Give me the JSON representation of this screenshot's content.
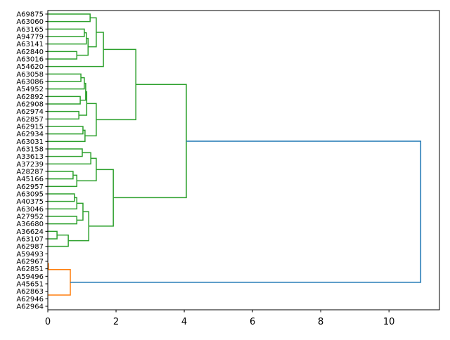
{
  "chart_data": {
    "type": "dendrogram",
    "orientation": "right",
    "title": "",
    "xlabel": "",
    "ylabel": "",
    "xlim": [
      0,
      11.48
    ],
    "xticks": [
      0,
      2,
      4,
      6,
      8,
      10
    ],
    "xtick_labels": [
      "0",
      "2",
      "4",
      "6",
      "8",
      "10"
    ],
    "leaves": [
      "A69875",
      "A63060",
      "A63165",
      "A94779",
      "A63141",
      "A62840",
      "A63016",
      "A54620",
      "A63058",
      "A63086",
      "A54952",
      "A62892",
      "A62908",
      "A62974",
      "A62857",
      "A62915",
      "A62934",
      "A63031",
      "A63158",
      "A33613",
      "A37239",
      "A28287",
      "A45166",
      "A62957",
      "A63095",
      "A40375",
      "A63046",
      "A27952",
      "A36680",
      "A36624",
      "A63107",
      "A62987",
      "A59493",
      "A62967",
      "A62851",
      "A59496",
      "A45651",
      "A62863",
      "A62946",
      "A62964"
    ],
    "colors": {
      "green": "#2ca02c",
      "orange": "#ff7f0e",
      "blue": "#1f77b4"
    },
    "links": [
      {
        "a": 0,
        "b": 1,
        "ha": 0,
        "hb": 0,
        "h": 1.24,
        "c": "green"
      },
      {
        "a": 2,
        "b": 3,
        "ha": 0,
        "hb": 0,
        "h": 1.07,
        "c": "green"
      },
      {
        "a": 2.5,
        "b": 4,
        "ha": 1.07,
        "hb": 0,
        "h": 1.13,
        "c": "green"
      },
      {
        "a": 5,
        "b": 6,
        "ha": 0,
        "hb": 0,
        "h": 0.85,
        "c": "green"
      },
      {
        "a": 3.25,
        "b": 5.5,
        "ha": 1.13,
        "hb": 0.85,
        "h": 1.18,
        "c": "green"
      },
      {
        "a": 0.5,
        "b": 4.375,
        "ha": 1.24,
        "hb": 1.18,
        "h": 1.42,
        "c": "green"
      },
      {
        "a": 2.44,
        "b": 7,
        "ha": 1.42,
        "hb": 0,
        "h": 1.63,
        "c": "green"
      },
      {
        "a": 8,
        "b": 9,
        "ha": 0,
        "hb": 0,
        "h": 0.97,
        "c": "green"
      },
      {
        "a": 8.5,
        "b": 10,
        "ha": 0.97,
        "hb": 0,
        "h": 1.07,
        "c": "green"
      },
      {
        "a": 11,
        "b": 12,
        "ha": 0,
        "hb": 0,
        "h": 0.95,
        "c": "green"
      },
      {
        "a": 9.25,
        "b": 11.5,
        "ha": 1.07,
        "hb": 0.95,
        "h": 1.11,
        "c": "green"
      },
      {
        "a": 13,
        "b": 14,
        "ha": 0,
        "hb": 0,
        "h": 0.91,
        "c": "green"
      },
      {
        "a": 10.375,
        "b": 13.5,
        "ha": 1.11,
        "hb": 0.91,
        "h": 1.14,
        "c": "green"
      },
      {
        "a": 15,
        "b": 16,
        "ha": 0,
        "hb": 0,
        "h": 1.03,
        "c": "green"
      },
      {
        "a": 15.5,
        "b": 17,
        "ha": 1.03,
        "hb": 0,
        "h": 1.09,
        "c": "green"
      },
      {
        "a": 11.94,
        "b": 16.25,
        "ha": 1.14,
        "hb": 1.09,
        "h": 1.42,
        "c": "green"
      },
      {
        "a": 4.72,
        "b": 14.1,
        "ha": 1.63,
        "hb": 1.42,
        "h": 2.58,
        "c": "green"
      },
      {
        "a": 18,
        "b": 19,
        "ha": 0,
        "hb": 0,
        "h": 1.01,
        "c": "green"
      },
      {
        "a": 18.5,
        "b": 20,
        "ha": 1.01,
        "hb": 0,
        "h": 1.26,
        "c": "green"
      },
      {
        "a": 21,
        "b": 22,
        "ha": 0,
        "hb": 0,
        "h": 0.74,
        "c": "green"
      },
      {
        "a": 21.5,
        "b": 23,
        "ha": 0.74,
        "hb": 0,
        "h": 0.85,
        "c": "green"
      },
      {
        "a": 19.25,
        "b": 22.25,
        "ha": 1.26,
        "hb": 0.85,
        "h": 1.42,
        "c": "green"
      },
      {
        "a": 24,
        "b": 25,
        "ha": 0,
        "hb": 0,
        "h": 0.78,
        "c": "green"
      },
      {
        "a": 24.5,
        "b": 26,
        "ha": 0.78,
        "hb": 0,
        "h": 0.85,
        "c": "green"
      },
      {
        "a": 27,
        "b": 28,
        "ha": 0,
        "hb": 0,
        "h": 0.85,
        "c": "green"
      },
      {
        "a": 25.25,
        "b": 27.5,
        "ha": 0.85,
        "hb": 0.85,
        "h": 1.03,
        "c": "green"
      },
      {
        "a": 29,
        "b": 30,
        "ha": 0,
        "hb": 0,
        "h": 0.27,
        "c": "green"
      },
      {
        "a": 29.5,
        "b": 31,
        "ha": 0.27,
        "hb": 0,
        "h": 0.6,
        "c": "green"
      },
      {
        "a": 26.375,
        "b": 30.25,
        "ha": 1.03,
        "hb": 0.6,
        "h": 1.2,
        "c": "green"
      },
      {
        "a": 20.75,
        "b": 28.3,
        "ha": 1.42,
        "hb": 1.2,
        "h": 1.92,
        "c": "green"
      },
      {
        "a": 9.4,
        "b": 24.5,
        "ha": 2.58,
        "hb": 1.92,
        "h": 4.06,
        "c": "green"
      },
      {
        "a": 33.3,
        "b": 34.1,
        "ha": 0,
        "hb": 0,
        "h": 0.02,
        "c": "orange"
      },
      {
        "a": 34.1,
        "b": 37.5,
        "ha": 0.02,
        "hb": 0,
        "h": 0.66,
        "c": "orange"
      },
      {
        "a": 16.97,
        "b": 35.8,
        "ha": 4.06,
        "hb": 0.66,
        "h": 10.93,
        "c": "blue"
      }
    ]
  }
}
